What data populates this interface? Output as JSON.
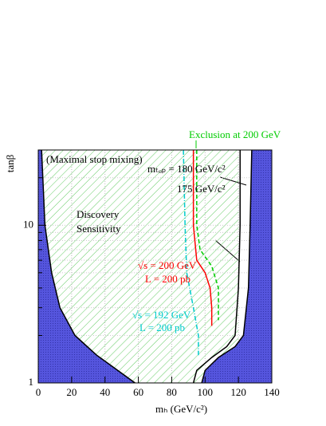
{
  "chart_data": {
    "type": "line",
    "x_label": "mₕ (GeV/c²)",
    "y_label": "tanβ",
    "xlim": [
      0,
      140
    ],
    "xticks": [
      0,
      20,
      40,
      60,
      80,
      100,
      120,
      140
    ],
    "ylim": [
      1,
      30
    ],
    "yticks": [
      1,
      10
    ],
    "log_y": true,
    "grid": true,
    "series": [
      {
        "color": "#000000",
        "fill": "left",
        "dash": "solid",
        "x": [
          58,
          35,
          22,
          13,
          8,
          4,
          2
        ],
        "values": [
          1,
          1.5,
          2,
          3,
          5,
          10,
          30
        ]
      },
      {
        "color": "#000000",
        "fill": "right",
        "dash": "solid",
        "x": [
          98,
          100,
          108,
          118,
          123,
          126,
          127,
          128
        ],
        "values": [
          1,
          1.2,
          1.45,
          1.7,
          2,
          4,
          10,
          30
        ]
      },
      {
        "color": "#000000",
        "fill": "none",
        "dash": "solid",
        "x": [
          93,
          95,
          104,
          113,
          118,
          120,
          121,
          121
        ],
        "values": [
          1,
          1.2,
          1.45,
          1.7,
          2,
          4,
          10,
          30
        ]
      },
      {
        "color": "#ff0000",
        "fill": "none",
        "dash": "solid",
        "x": [
          93,
          93,
          95,
          100,
          103,
          104,
          104
        ],
        "values": [
          30,
          10,
          6,
          5,
          4,
          3,
          2.3
        ]
      },
      {
        "color": "#00cc00",
        "fill": "none",
        "dash": "dashed",
        "x": [
          95,
          95,
          97,
          104,
          108,
          108
        ],
        "values": [
          30,
          10,
          7,
          5.5,
          4,
          2.5
        ]
      },
      {
        "color": "#00cccc",
        "fill": "none",
        "dash": "dashdot",
        "x": [
          87,
          88,
          89,
          93,
          96,
          96
        ],
        "values": [
          30,
          10,
          5,
          3,
          2,
          1.5
        ]
      }
    ],
    "annotations": [
      {
        "text": "(Maximal stop mixing)",
        "color": "#000000"
      },
      {
        "text": "Discovery",
        "color": "#000000"
      },
      {
        "text": "Sensitivity",
        "color": "#000000"
      },
      {
        "text": "mₜₒₚ = 180 GeV/c²",
        "color": "#000000"
      },
      {
        "text": "175 GeV/c²",
        "color": "#000000"
      },
      {
        "text": "√s = 200 GeV",
        "color": "#ff0000"
      },
      {
        "text": "L = 200 pb",
        "color": "#ff0000"
      },
      {
        "text": "√s = 192 GeV",
        "color": "#00cccc"
      },
      {
        "text": "L = 200 pb",
        "color": "#00cccc"
      },
      {
        "text": "Exclusion at 200 GeV",
        "color": "#00cc00"
      }
    ]
  }
}
